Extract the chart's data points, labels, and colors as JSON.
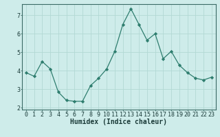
{
  "x": [
    0,
    1,
    2,
    3,
    4,
    5,
    6,
    7,
    8,
    9,
    10,
    11,
    12,
    13,
    14,
    15,
    16,
    17,
    18,
    19,
    20,
    21,
    22,
    23
  ],
  "y": [
    3.9,
    3.7,
    4.5,
    4.1,
    2.85,
    2.4,
    2.35,
    2.35,
    3.2,
    3.6,
    4.1,
    5.05,
    6.5,
    7.35,
    6.5,
    5.65,
    6.0,
    4.65,
    5.05,
    4.3,
    3.9,
    3.6,
    3.5,
    3.65
  ],
  "line_color": "#2e7d6e",
  "marker": "D",
  "marker_size": 2.2,
  "bg_color": "#ceecea",
  "grid_color": "#b2d8d4",
  "xlabel": "Humidex (Indice chaleur)",
  "xlabel_fontsize": 7,
  "tick_fontsize": 6,
  "xlim": [
    -0.5,
    23.5
  ],
  "ylim": [
    1.9,
    7.6
  ],
  "yticks": [
    2,
    3,
    4,
    5,
    6,
    7
  ],
  "xticks": [
    0,
    1,
    2,
    3,
    4,
    5,
    6,
    7,
    8,
    9,
    10,
    11,
    12,
    13,
    14,
    15,
    16,
    17,
    18,
    19,
    20,
    21,
    22,
    23
  ]
}
